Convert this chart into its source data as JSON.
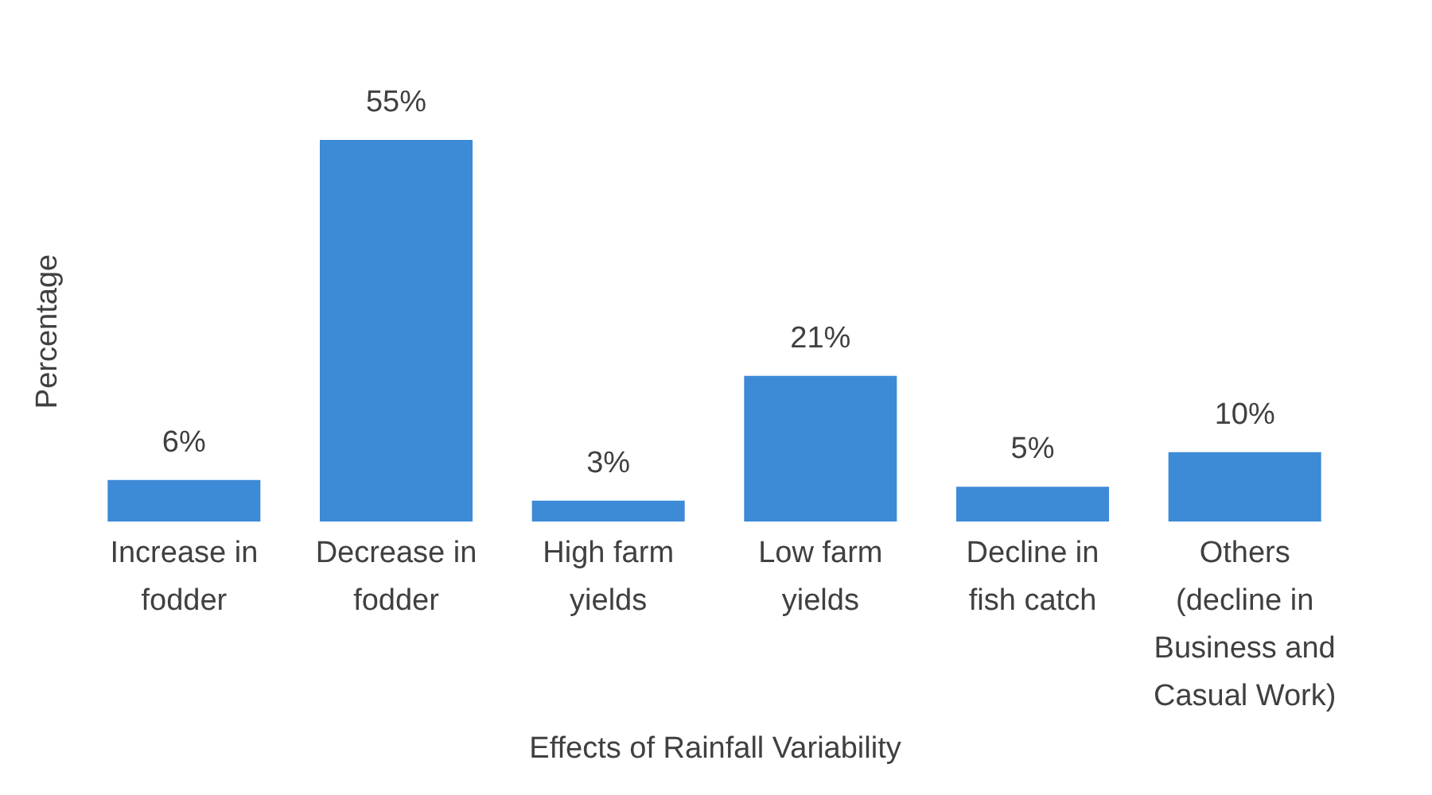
{
  "chart_data": {
    "type": "bar",
    "categories": [
      "Increase in fodder",
      "Decrease in fodder",
      "High farm yields",
      "Low farm yields",
      "Decline in fish catch",
      "Others (decline in Business and Casual Work)"
    ],
    "values": [
      6,
      55,
      3,
      21,
      5,
      10
    ],
    "value_labels": [
      "6%",
      "55%",
      "3%",
      "21%",
      "5%",
      "10%"
    ],
    "color": "#3d8ad6",
    "xlabel": "Effects of Rainfall Variability",
    "ylabel": "Percentage",
    "tick_labels": "x",
    "grid": false
  }
}
